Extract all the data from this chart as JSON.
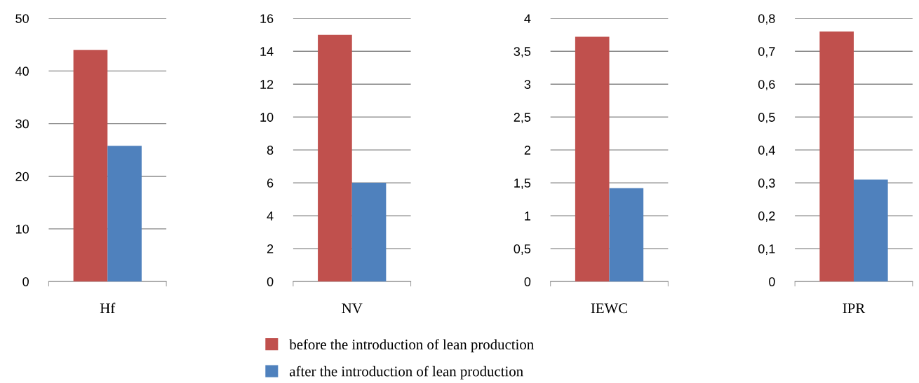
{
  "chart_data": [
    {
      "type": "bar",
      "categories": [
        "Hf"
      ],
      "ylim": [
        0,
        50
      ],
      "yticks": [
        0,
        10,
        20,
        30,
        40,
        50
      ],
      "grid": "y",
      "legend": "bottom",
      "series": [
        {
          "name": "before the introduction of lean production",
          "color": "#c0504d",
          "values": [
            44
          ]
        },
        {
          "name": "after the introduction of lean production",
          "color": "#4f81bd",
          "values": [
            25.8
          ]
        }
      ]
    },
    {
      "type": "bar",
      "categories": [
        "NV"
      ],
      "ylim": [
        0,
        16
      ],
      "yticks": [
        0,
        2,
        4,
        6,
        8,
        10,
        12,
        14,
        16
      ],
      "grid": "y",
      "series": [
        {
          "color": "#c0504d",
          "values": [
            15
          ]
        },
        {
          "color": "#4f81bd",
          "values": [
            6
          ]
        }
      ]
    },
    {
      "type": "bar",
      "categories": [
        "IEWC"
      ],
      "ylim": [
        0,
        4
      ],
      "yticks": [
        0,
        {
          "value": 0.5,
          "label": "0,5"
        },
        1,
        {
          "value": 1.5,
          "label": "1,5"
        },
        2,
        {
          "value": 2.5,
          "label": "2,5"
        },
        3,
        {
          "value": 3.5,
          "label": "3,5"
        },
        4
      ],
      "grid": "y",
      "series": [
        {
          "color": "#c0504d",
          "values": [
            3.72
          ]
        },
        {
          "color": "#4f81bd",
          "values": [
            1.42
          ]
        }
      ]
    },
    {
      "type": "bar",
      "categories": [
        "IPR"
      ],
      "ylim": [
        0,
        0.8
      ],
      "yticks": [
        0,
        {
          "value": 0.1,
          "label": "0,1"
        },
        {
          "value": 0.2,
          "label": "0,2"
        },
        {
          "value": 0.3,
          "label": "0,3"
        },
        {
          "value": 0.4,
          "label": "0,4"
        },
        {
          "value": 0.5,
          "label": "0,5"
        },
        {
          "value": 0.6,
          "label": "0,6"
        },
        {
          "value": 0.7,
          "label": "0,7"
        },
        {
          "value": 0.8,
          "label": "0,8"
        }
      ],
      "grid": "y",
      "series": [
        {
          "color": "#c0504d",
          "values": [
            0.76
          ]
        },
        {
          "color": "#4f81bd",
          "values": [
            0.31
          ]
        }
      ]
    }
  ]
}
